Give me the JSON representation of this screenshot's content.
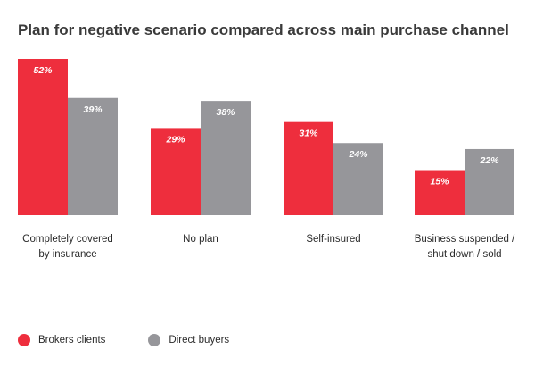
{
  "chart_data": {
    "type": "bar",
    "title": "Plan for negative scenario compared across main purchase channel",
    "categories": [
      [
        "Completely covered",
        "by insurance"
      ],
      [
        "No plan"
      ],
      [
        "Self-insured"
      ],
      [
        "Business suspended /",
        "shut down / sold"
      ]
    ],
    "series": [
      {
        "name": "Brokers clients",
        "color": "#ee2e3d",
        "values": [
          52,
          29,
          31,
          15
        ]
      },
      {
        "name": "Direct buyers",
        "color": "#96969a",
        "values": [
          39,
          38,
          24,
          22
        ]
      }
    ],
    "value_suffix": "%",
    "ylim": [
      0,
      52
    ],
    "grid": false,
    "legend": "bottom-left",
    "xlabel": "",
    "ylabel": ""
  }
}
